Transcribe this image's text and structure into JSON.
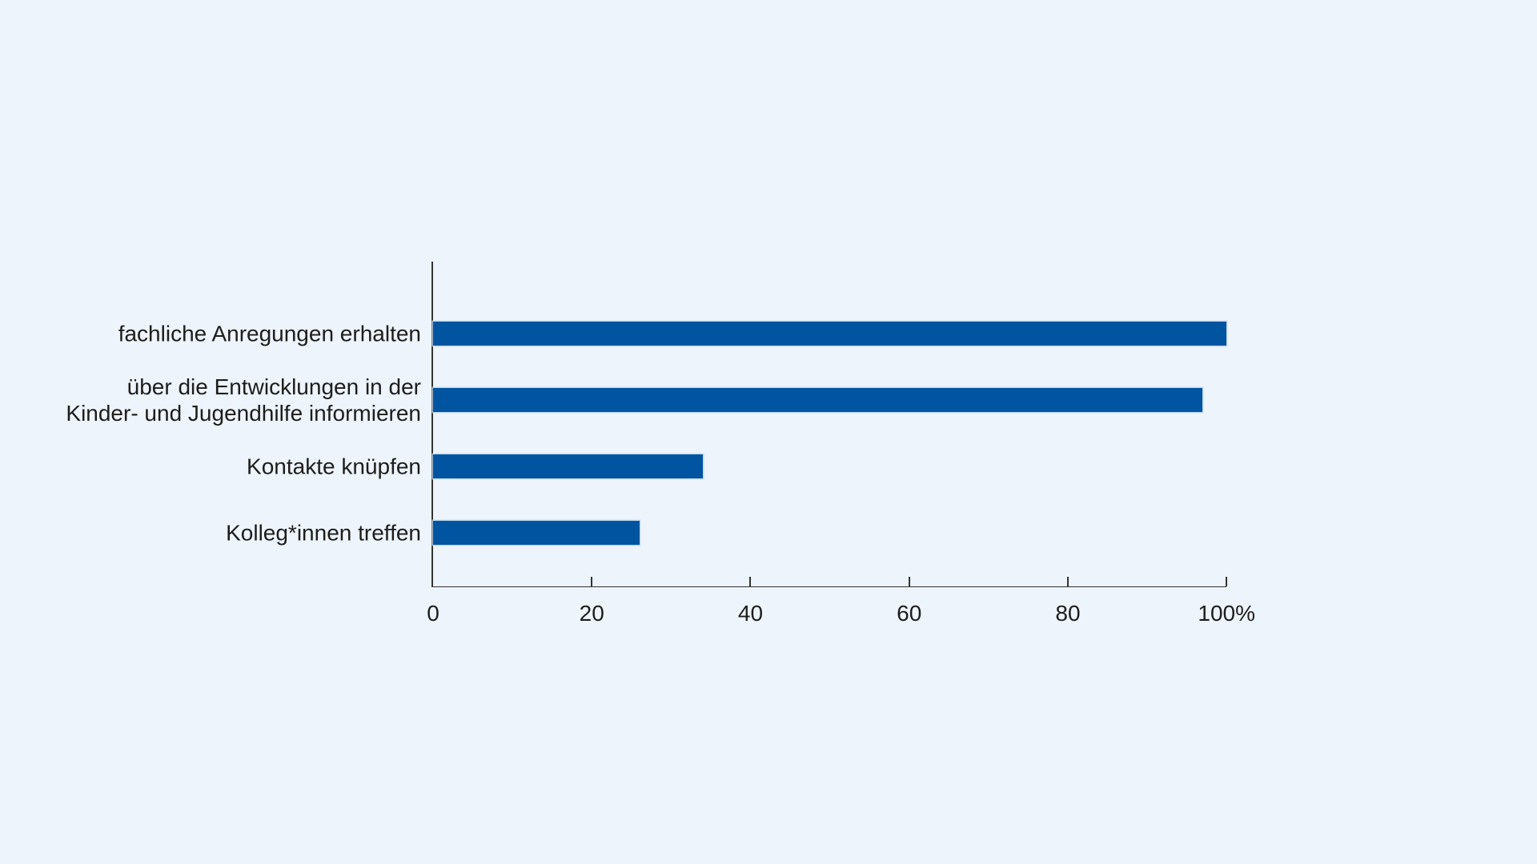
{
  "page": {
    "background_color": "#edf4fc",
    "text_color": "#1d1d1b",
    "axis_color": "#333333"
  },
  "chart_data": {
    "type": "bar",
    "orientation": "horizontal",
    "title": "",
    "xlabel": "",
    "ylabel": "",
    "categories": [
      "fachliche Anregungen erhalten",
      "über die Entwicklungen in der\nKinder- und Jugendhilfe informieren",
      "Kontakte knüpfen",
      "Kolleg*innen treffen"
    ],
    "values": [
      100,
      97,
      34,
      26
    ],
    "unit": "percent",
    "xlim": [
      0,
      100
    ],
    "x_ticks": [
      0,
      20,
      40,
      60,
      80,
      100
    ],
    "x_tick_labels": [
      "0",
      "20",
      "40",
      "60",
      "80",
      "100%"
    ],
    "grid": false,
    "legend_position": "none",
    "bar_color": "#0054a0",
    "bar_edge_color": "#bed6ee"
  }
}
